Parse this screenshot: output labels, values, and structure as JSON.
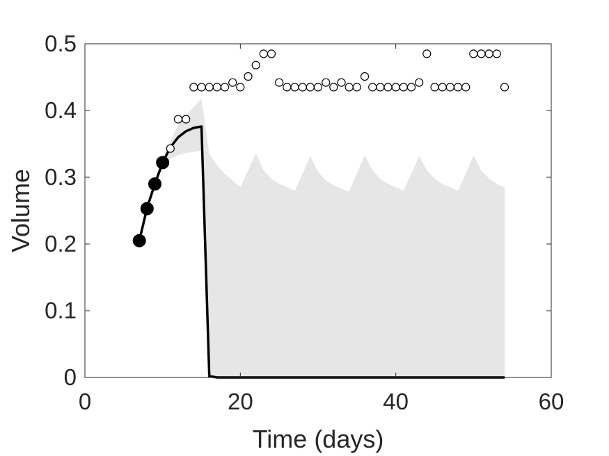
{
  "chart_data": {
    "type": "line",
    "title": "",
    "xlabel": "Time (days)",
    "ylabel": "Volume",
    "xlim": [
      0,
      60
    ],
    "ylim": [
      0,
      0.5
    ],
    "xticks": [
      0,
      20,
      40,
      60
    ],
    "xtick_labels": [
      "0",
      "20",
      "40",
      "60"
    ],
    "yticks": [
      0,
      0.1,
      0.2,
      0.3,
      0.4,
      0.5
    ],
    "ytick_labels": [
      "0",
      "0.1",
      "0.2",
      "0.3",
      "0.4",
      "0.5"
    ],
    "grid": false,
    "legend": "none",
    "colors": {
      "line": "#000000",
      "band": "#e6e6e6",
      "axes": "#262626",
      "filled_marker": "#000000",
      "open_marker": "#000000"
    },
    "series": [
      {
        "kind": "band",
        "x": [
          7,
          8,
          9,
          10,
          11,
          12,
          13,
          14,
          15,
          16,
          17,
          18,
          19,
          20,
          21,
          22,
          23,
          24,
          25,
          26,
          27,
          28,
          29,
          30,
          31,
          32,
          33,
          34,
          35,
          36,
          37,
          38,
          39,
          40,
          41,
          42,
          43,
          44,
          45,
          46,
          47,
          48,
          49,
          50,
          51,
          52,
          53,
          54
        ],
        "lower": [
          0.205,
          0.251,
          0.289,
          0.316,
          0.328,
          0.333,
          0.336,
          0.338,
          0.34,
          0,
          0,
          0,
          0,
          0,
          0,
          0,
          0,
          0,
          0,
          0,
          0,
          0,
          0,
          0,
          0,
          0,
          0,
          0,
          0,
          0,
          0,
          0,
          0,
          0,
          0,
          0,
          0,
          0,
          0,
          0,
          0,
          0,
          0,
          0,
          0,
          0,
          0,
          0
        ],
        "upper": [
          0.207,
          0.256,
          0.294,
          0.33,
          0.355,
          0.378,
          0.393,
          0.405,
          0.418,
          0.335,
          0.318,
          0.305,
          0.295,
          0.285,
          0.31,
          0.336,
          0.31,
          0.298,
          0.29,
          0.285,
          0.28,
          0.305,
          0.332,
          0.308,
          0.295,
          0.288,
          0.283,
          0.279,
          0.306,
          0.333,
          0.31,
          0.298,
          0.29,
          0.285,
          0.28,
          0.305,
          0.332,
          0.31,
          0.298,
          0.29,
          0.285,
          0.28,
          0.305,
          0.333,
          0.31,
          0.298,
          0.29,
          0.285
        ]
      },
      {
        "kind": "line",
        "x": [
          7,
          8,
          9,
          10,
          11,
          12,
          13,
          14,
          15,
          16,
          17,
          18,
          20,
          30,
          40,
          54
        ],
        "y": [
          0.205,
          0.254,
          0.29,
          0.322,
          0.345,
          0.36,
          0.369,
          0.374,
          0.376,
          0.002,
          0.0,
          0.0,
          0.0,
          0.0,
          0.0,
          0.0
        ]
      },
      {
        "kind": "scatter",
        "marker": "filled-circle",
        "x": [
          7,
          8,
          9,
          10
        ],
        "y": [
          0.205,
          0.253,
          0.29,
          0.322
        ]
      },
      {
        "kind": "scatter",
        "marker": "open-circle",
        "x": [
          11,
          12,
          13,
          14,
          15,
          16,
          17,
          18,
          19,
          20,
          21,
          22,
          23,
          24,
          25,
          26,
          27,
          28,
          29,
          30,
          31,
          32,
          33,
          34,
          35,
          36,
          37,
          38,
          39,
          40,
          41,
          42,
          43,
          44,
          45,
          46,
          47,
          48,
          49,
          50,
          51,
          52,
          53,
          54
        ],
        "y": [
          0.343,
          0.387,
          0.387,
          0.435,
          0.435,
          0.435,
          0.435,
          0.435,
          0.442,
          0.435,
          0.451,
          0.468,
          0.485,
          0.485,
          0.442,
          0.435,
          0.435,
          0.435,
          0.435,
          0.435,
          0.442,
          0.435,
          0.442,
          0.435,
          0.435,
          0.451,
          0.435,
          0.435,
          0.435,
          0.435,
          0.435,
          0.435,
          0.442,
          0.485,
          0.435,
          0.435,
          0.435,
          0.435,
          0.435,
          0.485,
          0.485,
          0.485,
          0.485,
          0.435
        ]
      }
    ]
  }
}
